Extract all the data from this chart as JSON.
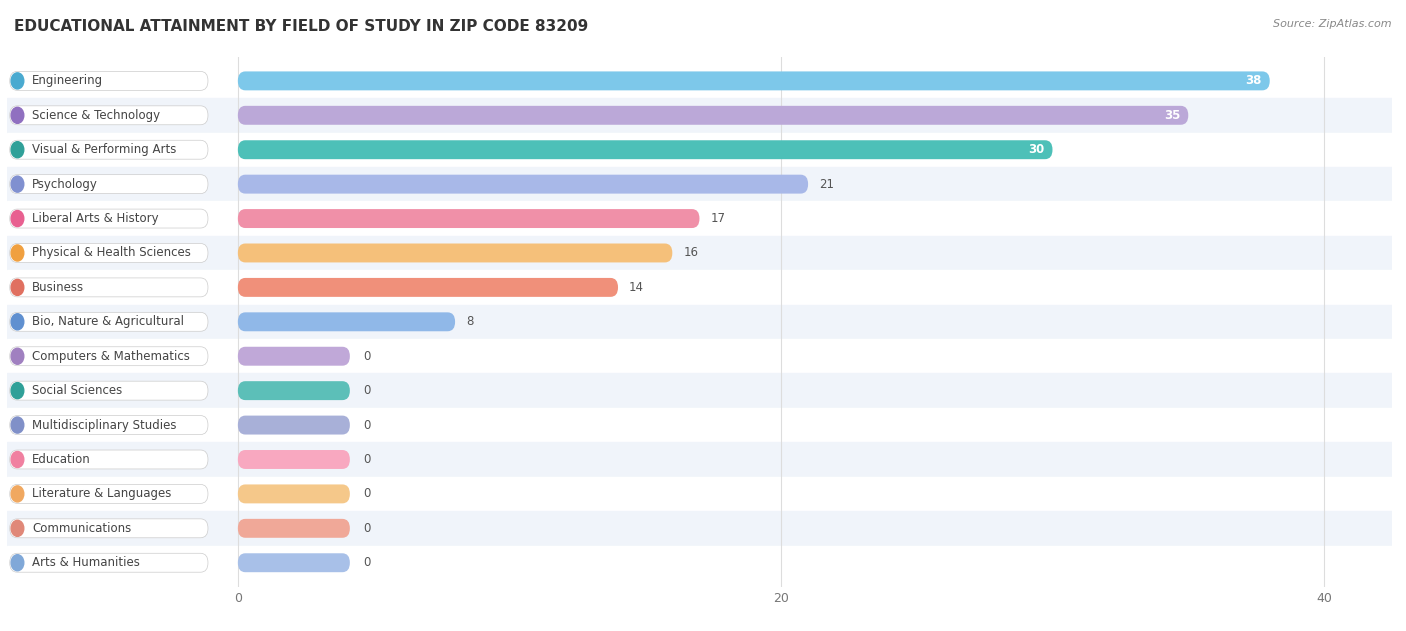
{
  "title": "EDUCATIONAL ATTAINMENT BY FIELD OF STUDY IN ZIP CODE 83209",
  "source": "Source: ZipAtlas.com",
  "categories": [
    "Engineering",
    "Science & Technology",
    "Visual & Performing Arts",
    "Psychology",
    "Liberal Arts & History",
    "Physical & Health Sciences",
    "Business",
    "Bio, Nature & Agricultural",
    "Computers & Mathematics",
    "Social Sciences",
    "Multidisciplinary Studies",
    "Education",
    "Literature & Languages",
    "Communications",
    "Arts & Humanities"
  ],
  "values": [
    38,
    35,
    30,
    21,
    17,
    16,
    14,
    8,
    0,
    0,
    0,
    0,
    0,
    0,
    0
  ],
  "bar_colors": [
    "#7DC8EA",
    "#BBA8D8",
    "#4DC0B8",
    "#A8B8E8",
    "#F090A8",
    "#F5C07A",
    "#F0907A",
    "#90B8E8",
    "#C0A8D8",
    "#5CBFB8",
    "#A8B0D8",
    "#F8A8C0",
    "#F5C88A",
    "#F0A898",
    "#A8C0E8"
  ],
  "dot_colors": [
    "#4AAAD0",
    "#9070C0",
    "#30A098",
    "#8090D0",
    "#E86090",
    "#F0A040",
    "#E07060",
    "#6090D0",
    "#A080C0",
    "#30A098",
    "#8090C8",
    "#F080A0",
    "#F0A860",
    "#E08878",
    "#80A8D8"
  ],
  "xlim_max": 42,
  "background_color": "#FFFFFF",
  "grid_color": "#DDDDDD",
  "title_fontsize": 11,
  "label_fontsize": 8.5,
  "value_fontsize": 8.5
}
